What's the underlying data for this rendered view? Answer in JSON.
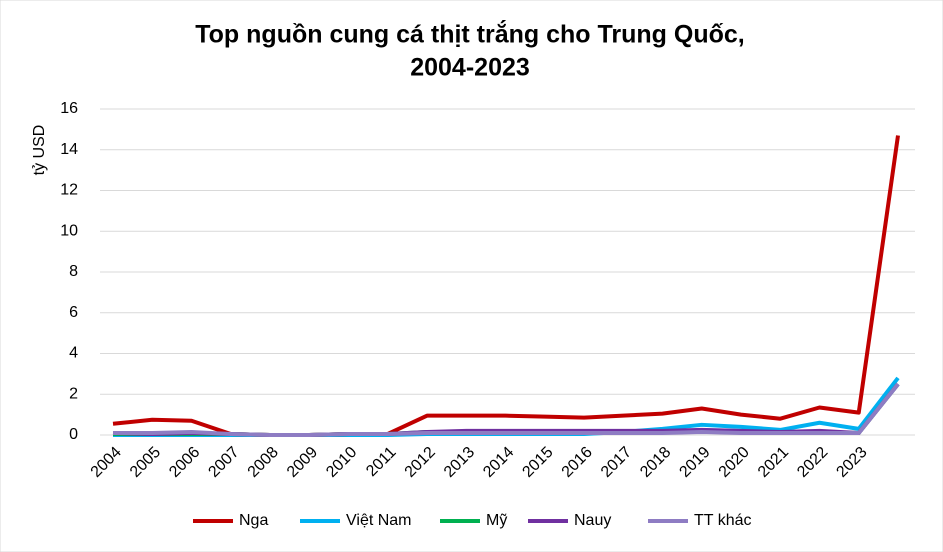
{
  "chart_data": {
    "type": "line",
    "title": [
      "Top nguồn cung cá thịt trắng cho Trung Quốc,",
      "2004-2023"
    ],
    "y_label": "tỷ USD",
    "categories": [
      "2004",
      "2005",
      "2006",
      "2007",
      "2008",
      "2009",
      "2010",
      "2011",
      "2012",
      "2013",
      "2014",
      "2015",
      "2016",
      "2017",
      "2018",
      "2019",
      "2020",
      "2021",
      "2022",
      "2023",
      null
    ],
    "series": [
      {
        "name": "Nga",
        "color": "#c00000",
        "values": [
          0.55,
          0.75,
          0.7,
          0.05,
          0,
          0,
          0.05,
          0.05,
          0.95,
          0.95,
          0.95,
          0.9,
          0.85,
          0.95,
          1.05,
          1.3,
          1.0,
          0.8,
          1.35,
          1.1,
          14.7
        ]
      },
      {
        "name": "Việt Nam",
        "color": "#00b0f0",
        "values": [
          0,
          0,
          0,
          0,
          0,
          0,
          0,
          0,
          0.05,
          0.05,
          0.05,
          0.05,
          0.05,
          0.15,
          0.3,
          0.5,
          0.4,
          0.25,
          0.6,
          0.3,
          2.8
        ]
      },
      {
        "name": "Mỹ",
        "color": "#00b050",
        "values": [
          0.05,
          0.05,
          0.05,
          0.05,
          0,
          0,
          0.05,
          0.05,
          0.15,
          0.15,
          0.15,
          0.15,
          0.15,
          0.15,
          0.15,
          0.2,
          0.15,
          0.15,
          0.15,
          0.1,
          2.5
        ]
      },
      {
        "name": "Nauy",
        "color": "#7030a0",
        "values": [
          0.1,
          0.05,
          0.1,
          0.05,
          0,
          0,
          0.05,
          0.05,
          0.15,
          0.2,
          0.2,
          0.2,
          0.2,
          0.2,
          0.2,
          0.25,
          0.2,
          0.15,
          0.2,
          0.1,
          2.5
        ]
      },
      {
        "name": "TT khác",
        "color": "#8e7cc3",
        "values": [
          0.1,
          0.1,
          0.15,
          0.05,
          0,
          0,
          0.05,
          0.05,
          0.1,
          0.1,
          0.1,
          0.1,
          0.1,
          0.1,
          0.1,
          0.15,
          0.1,
          0.1,
          0.1,
          0.1,
          2.5
        ]
      }
    ],
    "ylim": [
      0,
      16
    ],
    "yticks": [
      0,
      2,
      4,
      6,
      8,
      10,
      12,
      14,
      16
    ],
    "grid": true
  }
}
